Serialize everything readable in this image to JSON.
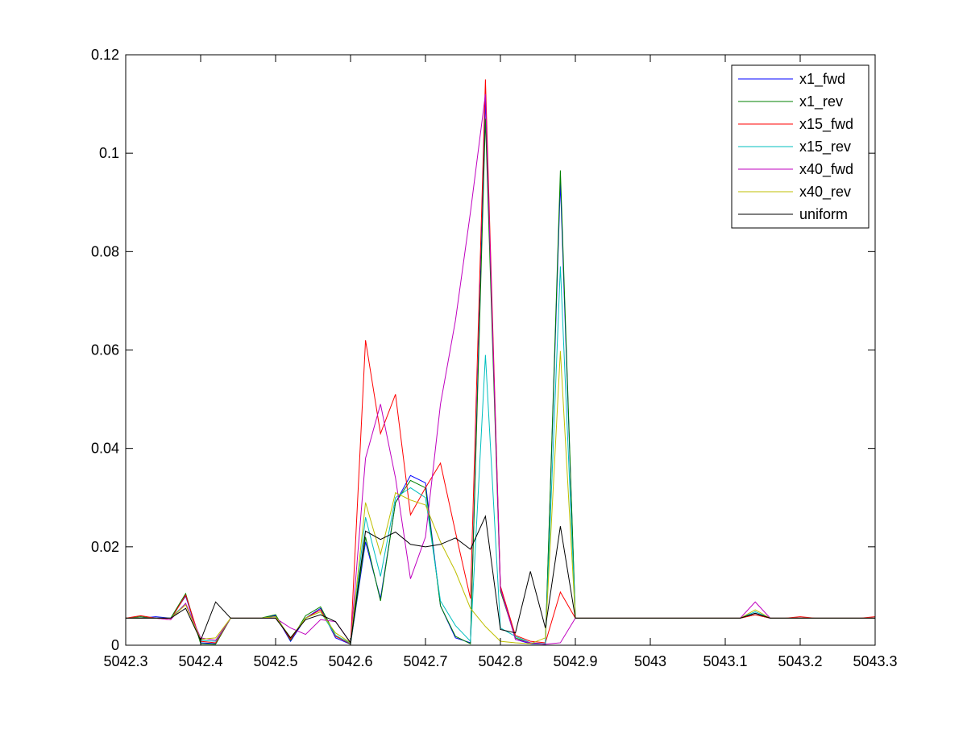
{
  "chart_data": {
    "type": "line",
    "title": "",
    "xlabel": "",
    "ylabel": "",
    "xlim": [
      5042.3,
      5043.3
    ],
    "ylim": [
      0,
      0.12
    ],
    "grid": false,
    "legend_position": "top-right",
    "x_ticks": [
      5042.3,
      5042.4,
      5042.5,
      5042.6,
      5042.7,
      5042.8,
      5042.9,
      5043,
      5043.1,
      5043.2,
      5043.3
    ],
    "x_tick_labels": [
      "5042.3",
      "5042.4",
      "5042.5",
      "5042.6",
      "5042.7",
      "5042.8",
      "5042.9",
      "5043",
      "5043.1",
      "5043.2",
      "5043.3"
    ],
    "y_ticks": [
      0,
      0.02,
      0.04,
      0.06,
      0.08,
      0.1,
      0.12
    ],
    "y_tick_labels": [
      "0",
      "0.02",
      "0.04",
      "0.06",
      "0.08",
      "0.1",
      "0.12"
    ],
    "x": [
      5042.3,
      5042.32,
      5042.34,
      5042.36,
      5042.38,
      5042.4,
      5042.42,
      5042.44,
      5042.46,
      5042.48,
      5042.5,
      5042.52,
      5042.54,
      5042.56,
      5042.58,
      5042.6,
      5042.62,
      5042.64,
      5042.66,
      5042.68,
      5042.7,
      5042.72,
      5042.74,
      5042.76,
      5042.78,
      5042.8,
      5042.82,
      5042.84,
      5042.86,
      5042.88,
      5042.9,
      5042.92,
      5042.94,
      5042.96,
      5042.98,
      5043.0,
      5043.02,
      5043.04,
      5043.06,
      5043.08,
      5043.1,
      5043.12,
      5043.14,
      5043.16,
      5043.18,
      5043.2,
      5043.22,
      5043.24,
      5043.26,
      5043.28,
      5043.3
    ],
    "series": [
      {
        "name": "x1_fwd",
        "color": "#0000ff",
        "values": [
          0.0055,
          0.0055,
          0.0058,
          0.0055,
          0.01,
          0.0005,
          0.0003,
          0.0055,
          0.0055,
          0.0055,
          0.006,
          0.0008,
          0.0055,
          0.0075,
          0.0015,
          0.0002,
          0.021,
          0.0095,
          0.029,
          0.0345,
          0.033,
          0.008,
          0.0015,
          0.0005,
          0.111,
          0.012,
          0.0012,
          0.0003,
          0.0002,
          0.094,
          0.0055,
          0.0055,
          0.0055,
          0.0055,
          0.0055,
          0.0055,
          0.0055,
          0.0055,
          0.0055,
          0.0055,
          0.0055,
          0.0055,
          0.0065,
          0.0055,
          0.0055,
          0.0055,
          0.0055,
          0.0055,
          0.0055,
          0.0055,
          0.0055
        ]
      },
      {
        "name": "x1_rev",
        "color": "#008000",
        "values": [
          0.0055,
          0.0058,
          0.0055,
          0.0055,
          0.0105,
          0.0003,
          0.0002,
          0.0055,
          0.0055,
          0.0055,
          0.0062,
          0.001,
          0.006,
          0.0078,
          0.002,
          0.0002,
          0.022,
          0.009,
          0.029,
          0.0335,
          0.032,
          0.008,
          0.0018,
          0.0003,
          0.107,
          0.011,
          0.0015,
          0.0004,
          0.0002,
          0.0965,
          0.0055,
          0.0055,
          0.0055,
          0.0055,
          0.0055,
          0.0055,
          0.0055,
          0.0055,
          0.0055,
          0.0055,
          0.0055,
          0.0055,
          0.0062,
          0.0055,
          0.0055,
          0.0055,
          0.0055,
          0.0055,
          0.0055,
          0.0055,
          0.0055
        ]
      },
      {
        "name": "x15_fwd",
        "color": "#ff0000",
        "values": [
          0.0055,
          0.006,
          0.0055,
          0.0052,
          0.0102,
          0.0008,
          0.0005,
          0.0055,
          0.0055,
          0.0055,
          0.0058,
          0.0012,
          0.0055,
          0.0072,
          0.0018,
          0.0003,
          0.062,
          0.043,
          0.051,
          0.0265,
          0.032,
          0.037,
          0.023,
          0.0095,
          0.115,
          0.012,
          0.002,
          0.0008,
          0.0005,
          0.0108,
          0.0055,
          0.0055,
          0.0055,
          0.0055,
          0.0055,
          0.0055,
          0.0055,
          0.0055,
          0.0055,
          0.0055,
          0.0055,
          0.0055,
          0.0062,
          0.0055,
          0.0055,
          0.0058,
          0.0055,
          0.0055,
          0.0055,
          0.0055,
          0.0058
        ]
      },
      {
        "name": "x15_rev",
        "color": "#00bfbf",
        "values": [
          0.0055,
          0.0055,
          0.0055,
          0.0055,
          0.0085,
          0.001,
          0.0008,
          0.0055,
          0.0055,
          0.0055,
          0.0058,
          0.0015,
          0.0055,
          0.0068,
          0.002,
          0.0004,
          0.026,
          0.014,
          0.03,
          0.032,
          0.03,
          0.009,
          0.004,
          0.0008,
          0.059,
          0.0035,
          0.0018,
          0.0005,
          0.0003,
          0.077,
          0.0055,
          0.0055,
          0.0055,
          0.0055,
          0.0055,
          0.0055,
          0.0055,
          0.0055,
          0.0055,
          0.0055,
          0.0055,
          0.0055,
          0.0068,
          0.0055,
          0.0055,
          0.0055,
          0.0055,
          0.0055,
          0.0055,
          0.0055,
          0.0055
        ]
      },
      {
        "name": "x40_fwd",
        "color": "#bf00bf",
        "values": [
          0.0055,
          0.0055,
          0.0055,
          0.0052,
          0.0085,
          0.0015,
          0.001,
          0.0055,
          0.0055,
          0.0055,
          0.0055,
          0.0035,
          0.0022,
          0.0052,
          0.0048,
          0.0005,
          0.038,
          0.049,
          0.034,
          0.0135,
          0.022,
          0.049,
          0.066,
          0.088,
          0.112,
          0.0115,
          0.0012,
          0.0005,
          0.0002,
          0.0005,
          0.0055,
          0.0055,
          0.0055,
          0.0055,
          0.0055,
          0.0055,
          0.0055,
          0.0055,
          0.0055,
          0.0055,
          0.0055,
          0.0055,
          0.0088,
          0.0055,
          0.0055,
          0.0055,
          0.0055,
          0.0055,
          0.0055,
          0.0055,
          0.0055
        ]
      },
      {
        "name": "x40_rev",
        "color": "#bfbf00",
        "values": [
          0.0055,
          0.0055,
          0.0055,
          0.0055,
          0.0082,
          0.0012,
          0.0015,
          0.0055,
          0.0055,
          0.0055,
          0.0058,
          0.0015,
          0.0055,
          0.0068,
          0.0025,
          0.0005,
          0.029,
          0.0185,
          0.031,
          0.0295,
          0.0285,
          0.021,
          0.015,
          0.0075,
          0.0038,
          0.0008,
          0.0005,
          0.0003,
          0.0015,
          0.0598,
          0.0055,
          0.0055,
          0.0055,
          0.0055,
          0.0055,
          0.0055,
          0.0055,
          0.0055,
          0.0055,
          0.0055,
          0.0055,
          0.0055,
          0.0072,
          0.0055,
          0.0055,
          0.0055,
          0.0055,
          0.0055,
          0.0055,
          0.0055,
          0.0055
        ]
      },
      {
        "name": "uniform",
        "color": "#000000",
        "values": [
          0.0055,
          0.0055,
          0.0055,
          0.0055,
          0.0075,
          0.001,
          0.0088,
          0.0055,
          0.0055,
          0.0055,
          0.0055,
          0.0015,
          0.0052,
          0.0062,
          0.0048,
          0.0005,
          0.0232,
          0.0215,
          0.023,
          0.0205,
          0.02,
          0.0205,
          0.0218,
          0.0195,
          0.0262,
          0.0032,
          0.0025,
          0.015,
          0.0035,
          0.0242,
          0.0055,
          0.0055,
          0.0055,
          0.0055,
          0.0055,
          0.0055,
          0.0055,
          0.0055,
          0.0055,
          0.0055,
          0.0055,
          0.0055,
          0.0065,
          0.0055,
          0.0055,
          0.0055,
          0.0055,
          0.0055,
          0.0055,
          0.0055,
          0.0055
        ]
      }
    ]
  }
}
